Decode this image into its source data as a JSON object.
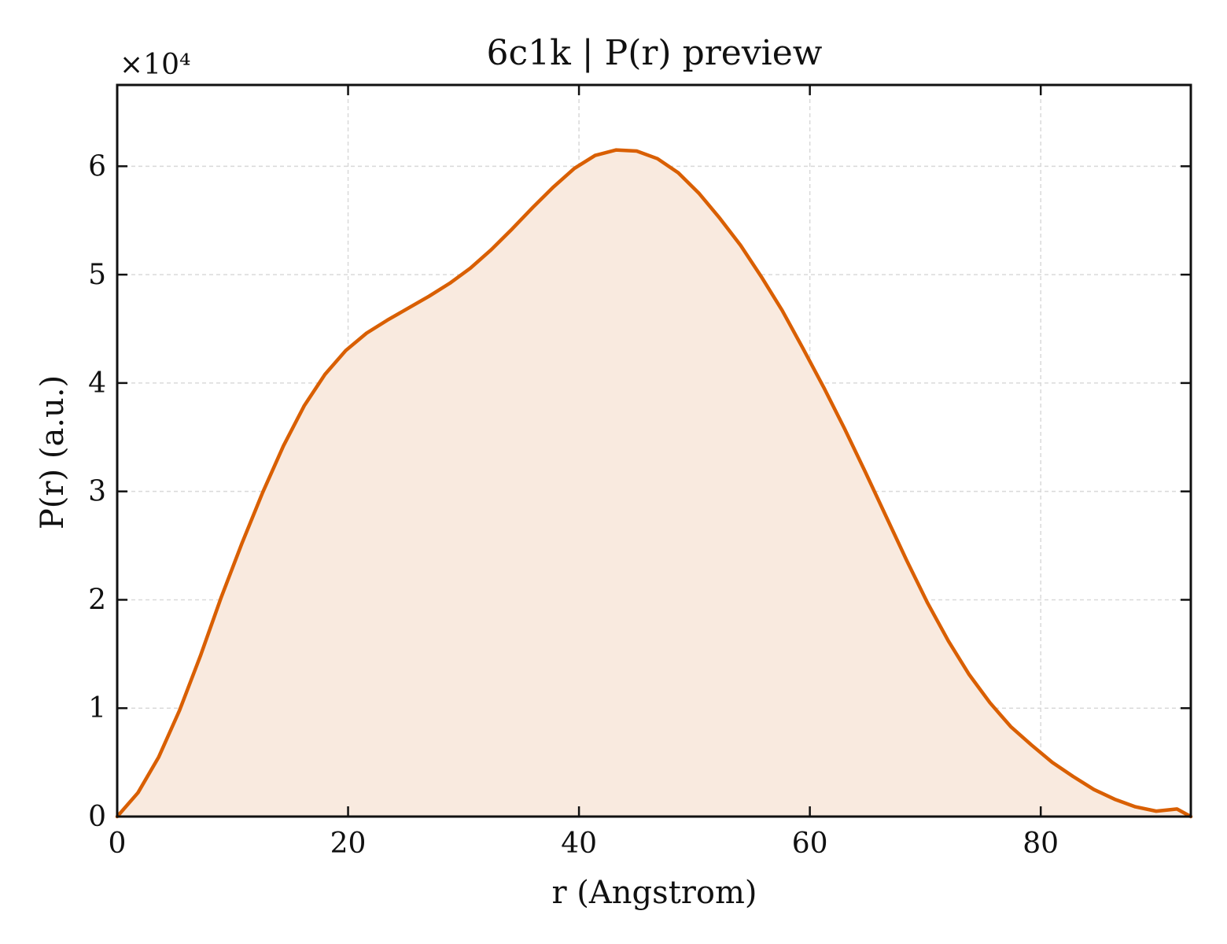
{
  "chart_data": {
    "type": "area",
    "title": "6c1k | P(r) preview",
    "xlabel": "r (Angstrom)",
    "ylabel": "P(r) (a.u.)",
    "y_offset_label": "×10⁴",
    "y_scale": 10000,
    "xlim": [
      0,
      93
    ],
    "ylim": [
      0,
      67500
    ],
    "x_ticks": [
      0,
      20,
      40,
      60,
      80
    ],
    "x_tick_labels": [
      "0",
      "20",
      "40",
      "60",
      "80"
    ],
    "y_ticks": [
      0,
      10000,
      20000,
      30000,
      40000,
      50000,
      60000
    ],
    "y_tick_labels": [
      "0",
      "1",
      "2",
      "3",
      "4",
      "5",
      "6"
    ],
    "grid": true,
    "line_color": "#d95f02",
    "fill_color": "#f9eadf",
    "series": [
      {
        "x": [
          0,
          1.8,
          3.6,
          5.4,
          7.2,
          9.0,
          10.8,
          12.6,
          14.4,
          16.2,
          18.0,
          19.8,
          21.6,
          23.4,
          25.2,
          27.0,
          28.8,
          30.6,
          32.4,
          34.2,
          36.0,
          37.8,
          39.6,
          41.4,
          43.2,
          45.0,
          46.8,
          48.6,
          50.4,
          52.2,
          54.0,
          55.8,
          57.6,
          59.4,
          61.2,
          63.0,
          64.8,
          66.6,
          68.4,
          70.2,
          72.0,
          73.8,
          75.6,
          77.4,
          79.2,
          81.0,
          82.8,
          84.6,
          86.4,
          88.2,
          90.0,
          91.8,
          93.0
        ],
        "y": [
          0,
          2200,
          5500,
          9800,
          14800,
          20200,
          25200,
          29900,
          34200,
          37900,
          40800,
          43000,
          44600,
          45800,
          46900,
          48000,
          49200,
          50600,
          52300,
          54200,
          56200,
          58100,
          59800,
          61000,
          61500,
          61400,
          60700,
          59400,
          57500,
          55200,
          52700,
          49800,
          46700,
          43200,
          39600,
          35800,
          31800,
          27700,
          23600,
          19700,
          16200,
          13100,
          10500,
          8300,
          6600,
          5000,
          3700,
          2500,
          1600,
          900,
          500,
          700,
          0
        ]
      }
    ]
  }
}
